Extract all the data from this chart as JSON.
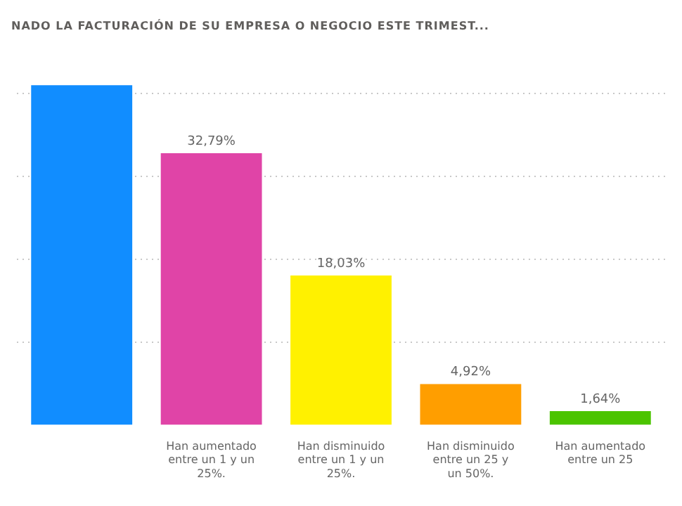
{
  "chart_data": {
    "type": "bar",
    "title": "NADO LA FACTURACIÓN DE SU EMPRESA O NEGOCIO ESTE TRIMEST...",
    "categories": [
      null,
      "Han aumentado entre un 1 y un 25%.",
      "Han disminuido entre un 1 y un 25%.",
      "Han disminuido entre un 25 y un 50%.",
      "Han aumentado entre un 25"
    ],
    "values": [
      41,
      32.79,
      18.03,
      4.92,
      1.64
    ],
    "value_labels": [
      null,
      "32,79%",
      "18,03%",
      "4,92%",
      "1,64%"
    ],
    "colors": [
      "#118dff",
      "#e044a7",
      "#fff100",
      "#ff9e00",
      "#4bc400"
    ],
    "yticks": [
      {
        "value": 10,
        "label": null
      },
      {
        "value": 20,
        "label": null
      },
      {
        "value": 30,
        "label": null
      },
      {
        "value": 40,
        "label": null
      }
    ],
    "tick_labels": "x",
    "grid": "y"
  }
}
